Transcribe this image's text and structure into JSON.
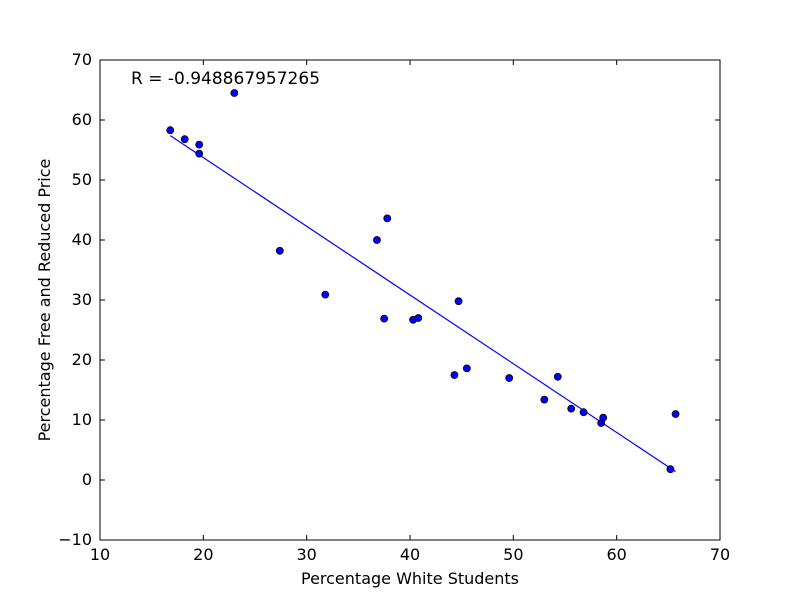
{
  "chart_data": {
    "type": "scatter",
    "xlabel": "Percentage White Students",
    "ylabel": "Percentage Free and Reduced Price",
    "annotation": "R = -0.948867957265",
    "xlim": [
      10,
      70
    ],
    "ylim": [
      -10,
      70
    ],
    "xticks": [
      10,
      20,
      30,
      40,
      50,
      60,
      70
    ],
    "yticks": [
      -10,
      0,
      10,
      20,
      30,
      40,
      50,
      60,
      70
    ],
    "grid": false,
    "point_color": "#0000ff",
    "line_color": "#0000ff",
    "points": [
      {
        "x": 16.8,
        "y": 58.3
      },
      {
        "x": 18.2,
        "y": 56.8
      },
      {
        "x": 19.6,
        "y": 55.9
      },
      {
        "x": 19.6,
        "y": 54.4
      },
      {
        "x": 23.0,
        "y": 64.5
      },
      {
        "x": 27.4,
        "y": 38.2
      },
      {
        "x": 31.8,
        "y": 30.9
      },
      {
        "x": 36.8,
        "y": 40.0
      },
      {
        "x": 37.5,
        "y": 26.9
      },
      {
        "x": 37.8,
        "y": 43.6
      },
      {
        "x": 40.3,
        "y": 26.7
      },
      {
        "x": 40.8,
        "y": 27.0
      },
      {
        "x": 44.3,
        "y": 17.5
      },
      {
        "x": 44.7,
        "y": 29.8
      },
      {
        "x": 45.5,
        "y": 18.6
      },
      {
        "x": 49.6,
        "y": 17.0
      },
      {
        "x": 53.0,
        "y": 13.4
      },
      {
        "x": 54.3,
        "y": 17.2
      },
      {
        "x": 55.6,
        "y": 11.9
      },
      {
        "x": 56.8,
        "y": 11.3
      },
      {
        "x": 58.5,
        "y": 9.5
      },
      {
        "x": 58.7,
        "y": 10.4
      },
      {
        "x": 65.2,
        "y": 1.8
      },
      {
        "x": 65.7,
        "y": 11.0
      }
    ],
    "fit_line": {
      "x": [
        16.8,
        65.7
      ],
      "y": [
        57.4,
        1.4
      ]
    }
  }
}
